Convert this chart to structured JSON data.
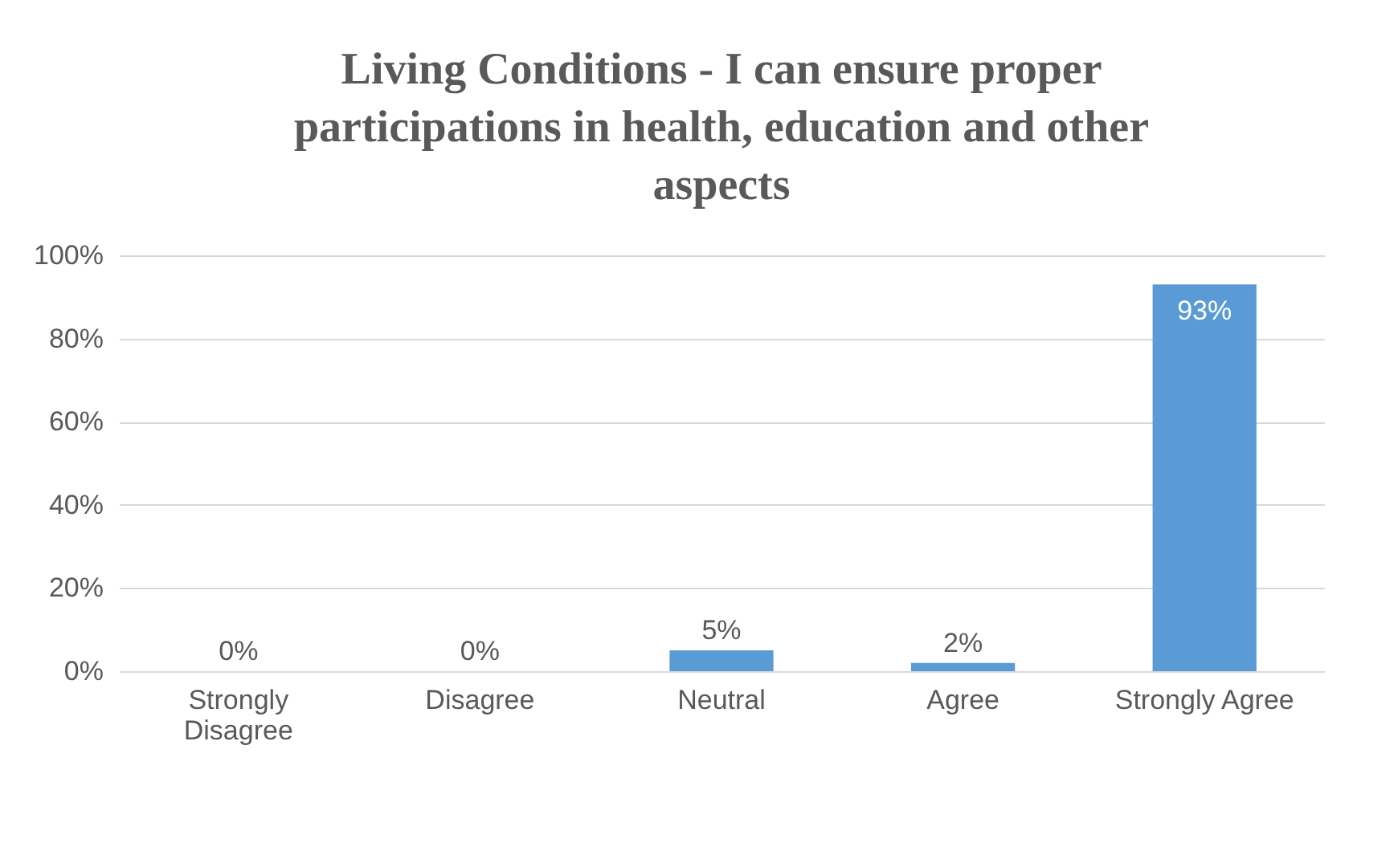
{
  "chart_data": {
    "type": "bar",
    "title": "Living Conditions - I can ensure proper participations in health, education and other aspects",
    "categories": [
      "Strongly Disagree",
      "Disagree",
      "Neutral",
      "Agree",
      "Strongly Agree"
    ],
    "values": [
      0,
      0,
      5,
      2,
      93
    ],
    "value_labels": [
      "0%",
      "0%",
      "5%",
      "2%",
      "93%"
    ],
    "color": "#5b9bd5",
    "ylim": [
      0,
      100
    ],
    "yticks": [
      {
        "value": 0,
        "label": "0%"
      },
      {
        "value": 20,
        "label": "20%"
      },
      {
        "value": 40,
        "label": "40%"
      },
      {
        "value": 60,
        "label": "60%"
      },
      {
        "value": 80,
        "label": "80%"
      },
      {
        "value": 100,
        "label": "100%"
      }
    ],
    "grid": "y"
  }
}
